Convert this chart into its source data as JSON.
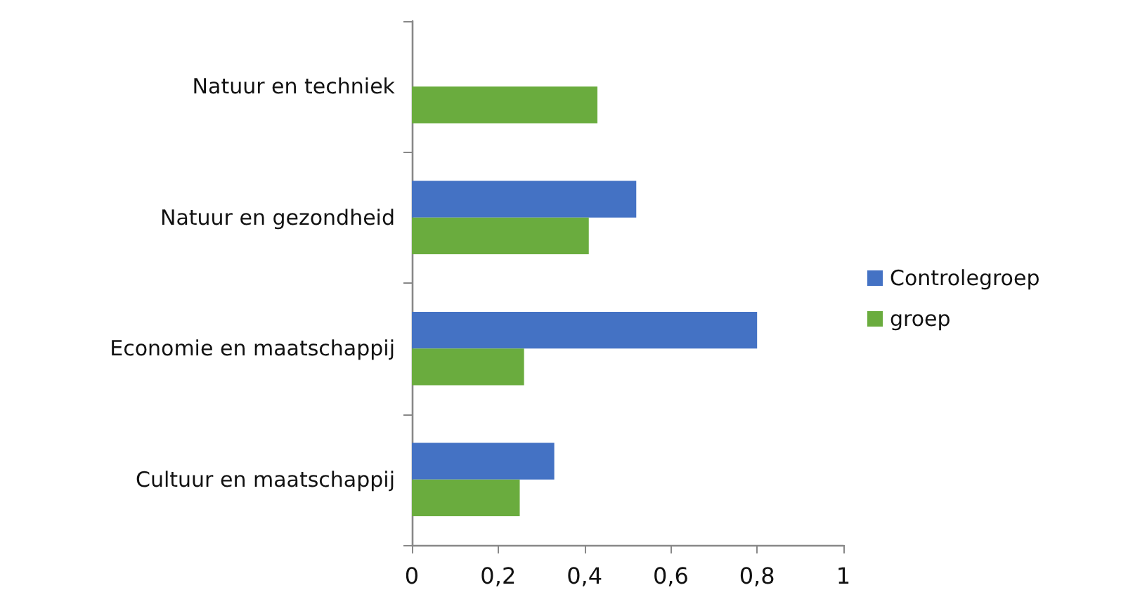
{
  "chart_data": {
    "type": "bar",
    "orientation": "horizontal",
    "categories": [
      "Natuur en techniek",
      "Natuur en gezondheid",
      "Economie en maatschappij",
      "Cultuur en maatschappij"
    ],
    "series": [
      {
        "name": "Controlegroep",
        "color": "#4472c4",
        "values": [
          null,
          0.52,
          0.8,
          0.33
        ]
      },
      {
        "name": "groep",
        "color": "#6aac3e",
        "values": [
          0.43,
          0.41,
          0.26,
          0.25
        ]
      }
    ],
    "xlim": [
      0,
      1
    ],
    "xticks": [
      0,
      {
        "value": 0.2,
        "label": "0,2"
      },
      {
        "value": 0.4,
        "label": "0,4"
      },
      {
        "value": 0.6,
        "label": "0,6"
      },
      {
        "value": 0.8,
        "label": "0,8"
      },
      1
    ],
    "grid": false,
    "legend": "right"
  }
}
